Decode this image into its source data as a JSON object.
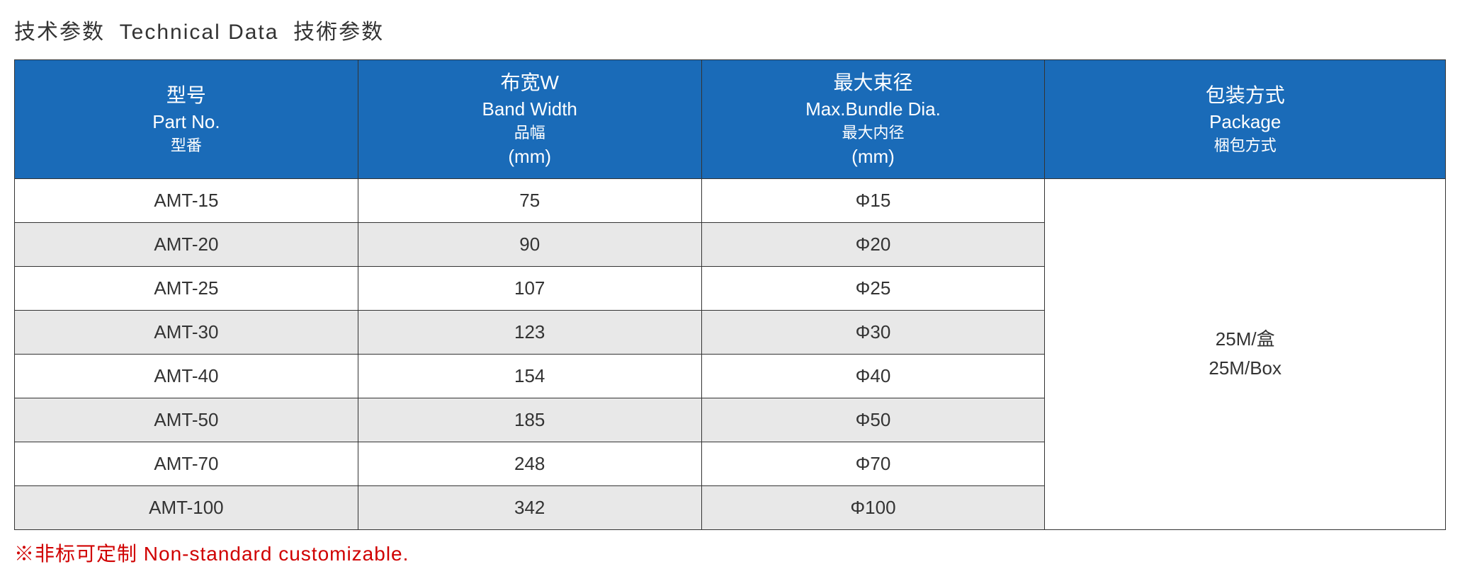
{
  "title": {
    "cn": "技术参数",
    "en": "Technical Data",
    "tw": "技術参数"
  },
  "headers": [
    {
      "cn1": "型号",
      "en": "Part No.",
      "cn2": "型番",
      "unit": ""
    },
    {
      "cn1": "布宽W",
      "en": "Band Width",
      "cn2": "品幅",
      "unit": "(mm)"
    },
    {
      "cn1": "最大束径",
      "en": "Max.Bundle Dia.",
      "cn2": "最大内径",
      "unit": "(mm)"
    },
    {
      "cn1": "包装方式",
      "en": "Package",
      "cn2": "梱包方式",
      "unit": ""
    }
  ],
  "rows": [
    {
      "part": "AMT-15",
      "width": "75",
      "dia": "Φ15"
    },
    {
      "part": "AMT-20",
      "width": "90",
      "dia": "Φ20"
    },
    {
      "part": "AMT-25",
      "width": "107",
      "dia": "Φ25"
    },
    {
      "part": "AMT-30",
      "width": "123",
      "dia": "Φ30"
    },
    {
      "part": "AMT-40",
      "width": "154",
      "dia": "Φ40"
    },
    {
      "part": "AMT-50",
      "width": "185",
      "dia": "Φ50"
    },
    {
      "part": "AMT-70",
      "width": "248",
      "dia": "Φ70"
    },
    {
      "part": "AMT-100",
      "width": "342",
      "dia": "Φ100"
    }
  ],
  "package": {
    "line1": "25M/盒",
    "line2": "25M/Box"
  },
  "footnote": "※非标可定制  Non-standard customizable.",
  "col_widths": [
    "24%",
    "24%",
    "24%",
    "28%"
  ],
  "colors": {
    "header_bg": "#1a6bb8",
    "header_fg": "#ffffff",
    "row_odd": "#ffffff",
    "row_even": "#e8e8e8",
    "border": "#333333",
    "text": "#333333",
    "footnote": "#d00000"
  }
}
